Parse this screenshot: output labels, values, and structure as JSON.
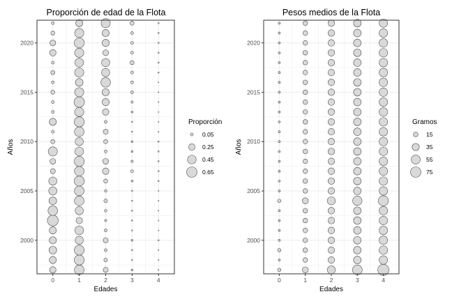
{
  "chart_data": [
    {
      "type": "scatter",
      "title": "Proporción de edad de la Flota",
      "xlabel": "Edades",
      "ylabel": "Años",
      "x_ticks": [
        0,
        1,
        2,
        3,
        4
      ],
      "y_ticks": [
        2000,
        2005,
        2010,
        2015,
        2020
      ],
      "xlim": [
        -0.6,
        4.6
      ],
      "ylim": [
        1996.6,
        2022.3
      ],
      "grid": true,
      "legend": {
        "title": "Proporción",
        "placement": "right",
        "values": [
          0.05,
          0.25,
          0.45,
          0.65
        ],
        "labels": [
          "0.05",
          "0.25",
          "0.45",
          "0.65"
        ]
      },
      "size_max_value": 0.65,
      "ages": [
        0,
        1,
        2,
        3,
        4
      ],
      "years": [
        1997,
        1998,
        1999,
        2000,
        2001,
        2002,
        2003,
        2004,
        2005,
        2006,
        2007,
        2008,
        2009,
        2010,
        2011,
        2012,
        2013,
        2014,
        2015,
        2016,
        2017,
        2018,
        2019,
        2020,
        2021,
        2022
      ],
      "values": [
        [
          0.25,
          0.55,
          0.15,
          0.02,
          0.0
        ],
        [
          0.3,
          0.6,
          0.08,
          0.01,
          0.0
        ],
        [
          0.35,
          0.58,
          0.05,
          0.01,
          0.0
        ],
        [
          0.3,
          0.4,
          0.15,
          0.02,
          0.01
        ],
        [
          0.3,
          0.45,
          0.05,
          0.01,
          0.0
        ],
        [
          0.7,
          0.25,
          0.03,
          0.01,
          0.0
        ],
        [
          0.55,
          0.4,
          0.04,
          0.01,
          0.0
        ],
        [
          0.35,
          0.55,
          0.08,
          0.01,
          0.0
        ],
        [
          0.4,
          0.55,
          0.04,
          0.01,
          0.0
        ],
        [
          0.4,
          0.6,
          0.1,
          0.02,
          0.01
        ],
        [
          0.15,
          0.55,
          0.25,
          0.05,
          0.01
        ],
        [
          0.2,
          0.6,
          0.2,
          0.03,
          0.01
        ],
        [
          0.5,
          0.45,
          0.05,
          0.02,
          0.01
        ],
        [
          0.1,
          0.4,
          0.1,
          0.02,
          0.01
        ],
        [
          0.05,
          0.55,
          0.15,
          0.01,
          0.0
        ],
        [
          0.3,
          0.6,
          0.05,
          0.01,
          0.0
        ],
        [
          0.05,
          0.5,
          0.25,
          0.02,
          0.0
        ],
        [
          0.05,
          0.65,
          0.3,
          0.03,
          0.0
        ],
        [
          0.1,
          0.5,
          0.3,
          0.05,
          0.0
        ],
        [
          0.05,
          0.35,
          0.55,
          0.05,
          0.0
        ],
        [
          0.1,
          0.5,
          0.4,
          0.05,
          0.01
        ],
        [
          0.05,
          0.45,
          0.4,
          0.1,
          0.01
        ],
        [
          0.25,
          0.5,
          0.2,
          0.05,
          0.01
        ],
        [
          0.2,
          0.6,
          0.3,
          0.05,
          0.01
        ],
        [
          0.1,
          0.5,
          0.3,
          0.05,
          0.01
        ],
        [
          0.05,
          0.3,
          0.5,
          0.1,
          0.01
        ]
      ]
    },
    {
      "type": "scatter",
      "title": "Pesos medios de la Flota",
      "xlabel": "Edades",
      "ylabel": "Años",
      "x_ticks": [
        0,
        1,
        2,
        3,
        4
      ],
      "y_ticks": [
        2000,
        2005,
        2010,
        2015,
        2020
      ],
      "xlim": [
        -0.6,
        4.6
      ],
      "ylim": [
        1996.6,
        2022.3
      ],
      "grid": true,
      "legend": {
        "title": "Gramos",
        "placement": "right",
        "values": [
          15,
          35,
          55,
          75
        ],
        "labels": [
          "15",
          "35",
          "55",
          "75"
        ]
      },
      "size_max_value": 75,
      "ages": [
        0,
        1,
        2,
        3,
        4
      ],
      "years": [
        1997,
        1998,
        1999,
        2000,
        2001,
        2002,
        2003,
        2004,
        2005,
        2006,
        2007,
        2008,
        2009,
        2010,
        2011,
        2012,
        2013,
        2014,
        2015,
        2016,
        2017,
        2018,
        2019,
        2020,
        2021,
        2022
      ],
      "values": [
        [
          8,
          25,
          45,
          65,
          85
        ],
        [
          3,
          15,
          30,
          40,
          50
        ],
        [
          8,
          15,
          30,
          40,
          50
        ],
        [
          3,
          15,
          30,
          40,
          50
        ],
        [
          3,
          15,
          30,
          40,
          50
        ],
        [
          3,
          15,
          30,
          40,
          50
        ],
        [
          3,
          15,
          30,
          40,
          50
        ],
        [
          8,
          25,
          45,
          60,
          70
        ],
        [
          3,
          15,
          30,
          40,
          50
        ],
        [
          3,
          15,
          30,
          40,
          50
        ],
        [
          3,
          15,
          30,
          40,
          50
        ],
        [
          3,
          15,
          30,
          40,
          50
        ],
        [
          3,
          15,
          30,
          40,
          50
        ],
        [
          3,
          15,
          30,
          40,
          50
        ],
        [
          3,
          15,
          30,
          40,
          50
        ],
        [
          3,
          15,
          30,
          40,
          50
        ],
        [
          3,
          15,
          30,
          40,
          50
        ],
        [
          3,
          15,
          30,
          40,
          50
        ],
        [
          3,
          15,
          30,
          40,
          50
        ],
        [
          3,
          15,
          30,
          40,
          50
        ],
        [
          3,
          15,
          30,
          40,
          50
        ],
        [
          3,
          15,
          30,
          40,
          50
        ],
        [
          3,
          15,
          30,
          40,
          50
        ],
        [
          3,
          15,
          30,
          40,
          50
        ],
        [
          3,
          15,
          30,
          40,
          50
        ],
        [
          3,
          15,
          30,
          40,
          50
        ]
      ]
    }
  ],
  "colors": {
    "point_fill": "#d9d9d9",
    "point_stroke": "#4d4d4d",
    "grid": "#ebebeb",
    "panel_border": "#333333"
  }
}
